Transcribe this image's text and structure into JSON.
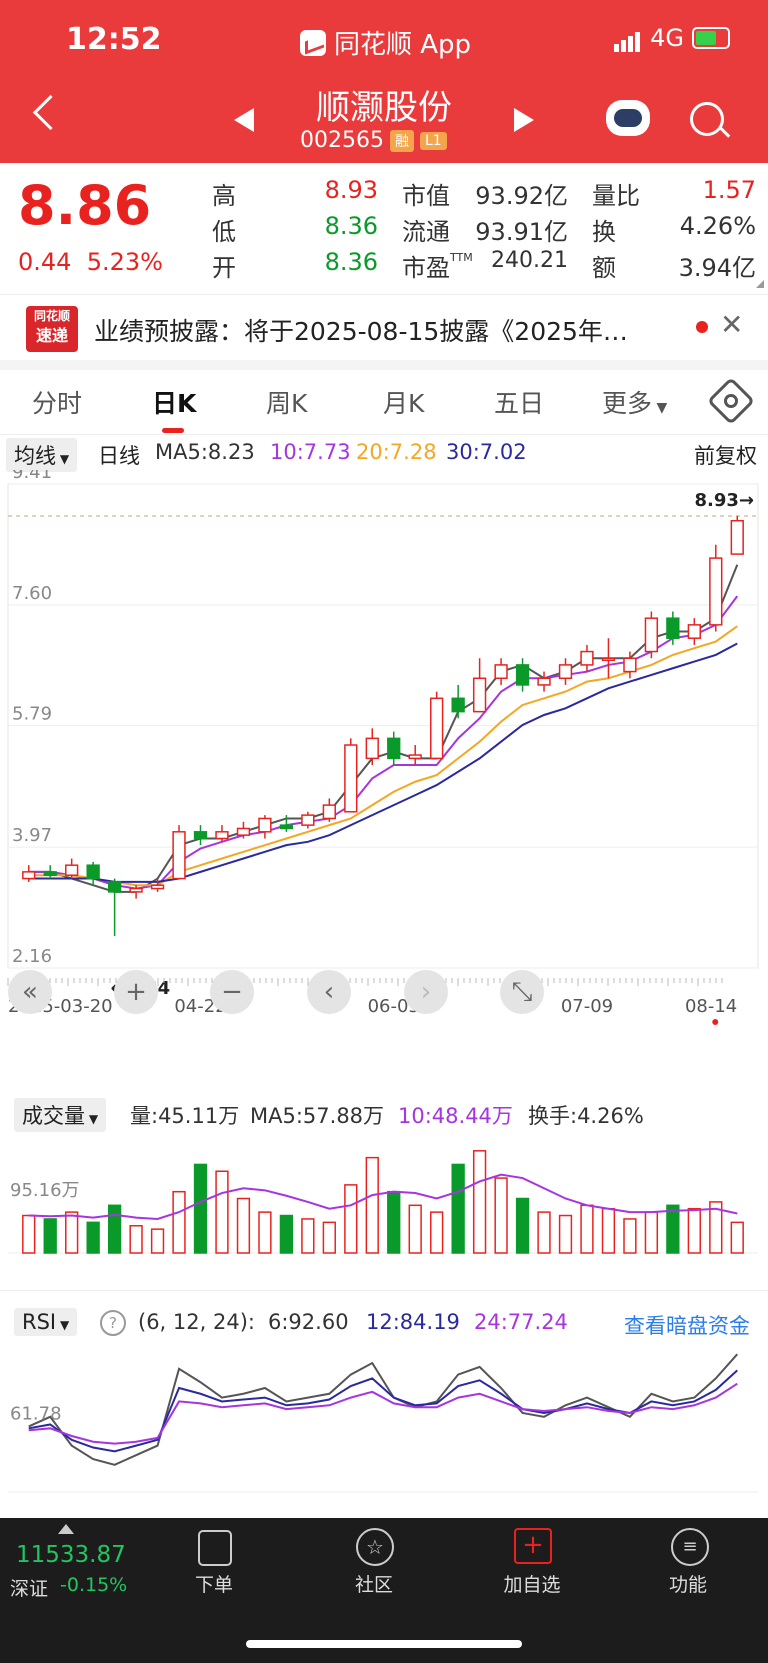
{
  "status_bar": {
    "time": "12:52",
    "app": "同花顺 App",
    "network": "4G"
  },
  "stock": {
    "name": "顺灏股份",
    "code": "002565",
    "tags": [
      "融",
      "L1"
    ]
  },
  "quote": {
    "price": "8.86",
    "change": "0.44",
    "change_pct": "5.23%",
    "high_label": "高",
    "high": "8.93",
    "low_label": "低",
    "low": "8.36",
    "open_label": "开",
    "open": "8.36",
    "mcap_label": "市值",
    "mcap": "93.92亿",
    "float_label": "流通",
    "float": "93.91亿",
    "pe_label": "市盈",
    "pe_sup": "TTM",
    "pe": "240.21",
    "vr_label": "量比",
    "vr": "1.57",
    "turn_label": "换",
    "turn": "4.26%",
    "amt_label": "额",
    "amt": "3.94亿"
  },
  "news": {
    "logo_top": "同花顺",
    "logo_bottom": "速递",
    "text": "业绩预披露：将于2025-08-15披露《2025年…"
  },
  "tabs": [
    "分时",
    "日K",
    "周K",
    "月K",
    "五日",
    "更多"
  ],
  "active_tab": 1,
  "ma_legend": {
    "selector": "均线",
    "period": "日线",
    "ma5": "MA5:8.23",
    "ma10": "10:7.73",
    "ma20": "20:7.28",
    "ma30": "30:7.02",
    "adjust": "前复权"
  },
  "colors": {
    "up": "#e8231f",
    "down": "#0a9a2a",
    "ma5": "#555555",
    "ma10": "#a634e0",
    "ma20": "#f5a623",
    "ma30": "#2a2a9e"
  },
  "chart_data": {
    "type": "candlestick",
    "y_ticks": [
      "9.41",
      "7.60",
      "5.79",
      "3.97",
      "2.16"
    ],
    "ylim": [
      2.16,
      9.41
    ],
    "x_ticks": [
      "2025-03-20",
      "04-22",
      "06-03",
      "07-09",
      "08-14"
    ],
    "max_label": "8.93→",
    "min_label": "←2.64",
    "ma_series": [
      {
        "name": "MA5",
        "values": [
          3.6,
          3.6,
          3.5,
          3.4,
          3.3,
          3.3,
          3.5,
          4.0,
          4.1,
          4.1,
          4.2,
          4.3,
          4.4,
          4.4,
          4.5,
          4.9,
          5.3,
          5.4,
          5.3,
          5.3,
          6.0,
          6.2,
          6.6,
          6.7,
          6.5,
          6.6,
          6.8,
          6.8,
          6.8,
          7.1,
          7.2,
          7.2,
          7.4,
          8.2
        ]
      },
      {
        "name": "MA10",
        "values": [
          3.6,
          3.6,
          3.55,
          3.5,
          3.4,
          3.35,
          3.4,
          3.75,
          3.95,
          4.05,
          4.15,
          4.2,
          4.3,
          4.35,
          4.4,
          4.6,
          5.0,
          5.2,
          5.2,
          5.2,
          5.6,
          5.9,
          6.3,
          6.5,
          6.5,
          6.55,
          6.6,
          6.7,
          6.75,
          6.9,
          7.1,
          7.15,
          7.3,
          7.73
        ]
      },
      {
        "name": "MA20",
        "values": [
          3.55,
          3.55,
          3.55,
          3.5,
          3.45,
          3.4,
          3.4,
          3.6,
          3.7,
          3.8,
          3.9,
          4.0,
          4.1,
          4.2,
          4.3,
          4.4,
          4.6,
          4.8,
          4.95,
          5.05,
          5.3,
          5.55,
          5.85,
          6.1,
          6.2,
          6.3,
          6.45,
          6.5,
          6.6,
          6.7,
          6.85,
          6.95,
          7.05,
          7.28
        ]
      },
      {
        "name": "MA30",
        "values": [
          3.5,
          3.5,
          3.5,
          3.5,
          3.45,
          3.45,
          3.45,
          3.5,
          3.6,
          3.7,
          3.8,
          3.9,
          4.0,
          4.05,
          4.15,
          4.3,
          4.45,
          4.6,
          4.75,
          4.9,
          5.1,
          5.3,
          5.55,
          5.8,
          5.95,
          6.05,
          6.2,
          6.35,
          6.45,
          6.55,
          6.65,
          6.75,
          6.85,
          7.02
        ]
      }
    ],
    "candles": [
      [
        3.5,
        3.6,
        3.7,
        3.45
      ],
      [
        3.6,
        3.55,
        3.7,
        3.5
      ],
      [
        3.55,
        3.7,
        3.8,
        3.5
      ],
      [
        3.7,
        3.5,
        3.75,
        3.4
      ],
      [
        3.45,
        3.3,
        3.5,
        2.64
      ],
      [
        3.3,
        3.35,
        3.4,
        3.2
      ],
      [
        3.35,
        3.4,
        3.5,
        3.3
      ],
      [
        3.5,
        4.2,
        4.3,
        3.5
      ],
      [
        4.2,
        4.1,
        4.3,
        4.0
      ],
      [
        4.1,
        4.2,
        4.3,
        4.05
      ],
      [
        4.15,
        4.25,
        4.35,
        4.1
      ],
      [
        4.2,
        4.4,
        4.45,
        4.1
      ],
      [
        4.3,
        4.25,
        4.45,
        4.2
      ],
      [
        4.3,
        4.45,
        4.5,
        4.25
      ],
      [
        4.4,
        4.6,
        4.7,
        4.35
      ],
      [
        4.5,
        5.5,
        5.6,
        4.5
      ],
      [
        5.3,
        5.6,
        5.75,
        5.2
      ],
      [
        5.6,
        5.3,
        5.7,
        5.2
      ],
      [
        5.3,
        5.35,
        5.5,
        5.2
      ],
      [
        5.3,
        6.2,
        6.3,
        5.3
      ],
      [
        6.2,
        6.0,
        6.4,
        5.9
      ],
      [
        6.0,
        6.5,
        6.8,
        6.0
      ],
      [
        6.5,
        6.7,
        6.8,
        6.4
      ],
      [
        6.7,
        6.4,
        6.8,
        6.3
      ],
      [
        6.4,
        6.5,
        6.6,
        6.3
      ],
      [
        6.5,
        6.7,
        6.8,
        6.4
      ],
      [
        6.7,
        6.9,
        7.0,
        6.6
      ],
      [
        6.8,
        6.8,
        7.1,
        6.5
      ],
      [
        6.6,
        6.8,
        6.9,
        6.5
      ],
      [
        6.9,
        7.4,
        7.5,
        6.8
      ],
      [
        7.4,
        7.1,
        7.5,
        7.0
      ],
      [
        7.1,
        7.3,
        7.4,
        7.0
      ],
      [
        7.3,
        8.3,
        8.5,
        7.2
      ],
      [
        8.36,
        8.86,
        8.93,
        8.36
      ]
    ],
    "volume": {
      "selector": "成交量",
      "vol": "量:45.11万",
      "ma5": "MA5:57.88万",
      "ma10": "10:48.44万",
      "turnover": "换手:4.26%",
      "tick": "95.16万",
      "values": [
        55,
        50,
        60,
        45,
        70,
        40,
        35,
        90,
        130,
        120,
        80,
        60,
        55,
        50,
        45,
        100,
        140,
        90,
        70,
        60,
        130,
        150,
        110,
        80,
        60,
        55,
        70,
        65,
        50,
        60,
        70,
        65,
        75,
        45
      ],
      "ma": [
        55,
        54,
        55,
        52,
        56,
        52,
        50,
        60,
        75,
        88,
        95,
        92,
        84,
        75,
        65,
        70,
        85,
        90,
        88,
        80,
        90,
        105,
        115,
        110,
        95,
        80,
        70,
        65,
        60,
        60,
        62,
        63,
        65,
        58
      ]
    },
    "rsi": {
      "selector": "RSI",
      "params": "(6, 12, 24):",
      "rsi6": "6:92.60",
      "rsi12": "12:84.19",
      "rsi24": "24:77.24",
      "link": "查看暗盘资金",
      "tick": "61.78",
      "rsi6_values": [
        55,
        60,
        45,
        38,
        35,
        40,
        45,
        85,
        78,
        70,
        72,
        75,
        68,
        70,
        72,
        82,
        88,
        70,
        65,
        68,
        82,
        86,
        75,
        62,
        60,
        66,
        70,
        65,
        60,
        72,
        68,
        70,
        80,
        92.6
      ],
      "rsi12_values": [
        54,
        56,
        48,
        44,
        42,
        45,
        48,
        75,
        72,
        68,
        69,
        70,
        66,
        67,
        69,
        76,
        80,
        70,
        66,
        67,
        76,
        79,
        72,
        64,
        62,
        64,
        67,
        64,
        62,
        68,
        66,
        68,
        74,
        84.19
      ],
      "rsi24_values": [
        53,
        54,
        50,
        47,
        46,
        47,
        49,
        68,
        67,
        65,
        66,
        67,
        64,
        65,
        66,
        70,
        73,
        67,
        65,
        65,
        70,
        72,
        68,
        64,
        63,
        64,
        65,
        63,
        62,
        65,
        64,
        66,
        70,
        77.24
      ]
    }
  },
  "chart_controls": [
    "«",
    "+",
    "−",
    "‹",
    "›",
    "⤡"
  ],
  "bottom": {
    "index_value": "11533.87",
    "index_name": "深证",
    "index_change": "-0.15%",
    "items": [
      "下单",
      "社区",
      "加自选",
      "功能"
    ]
  }
}
